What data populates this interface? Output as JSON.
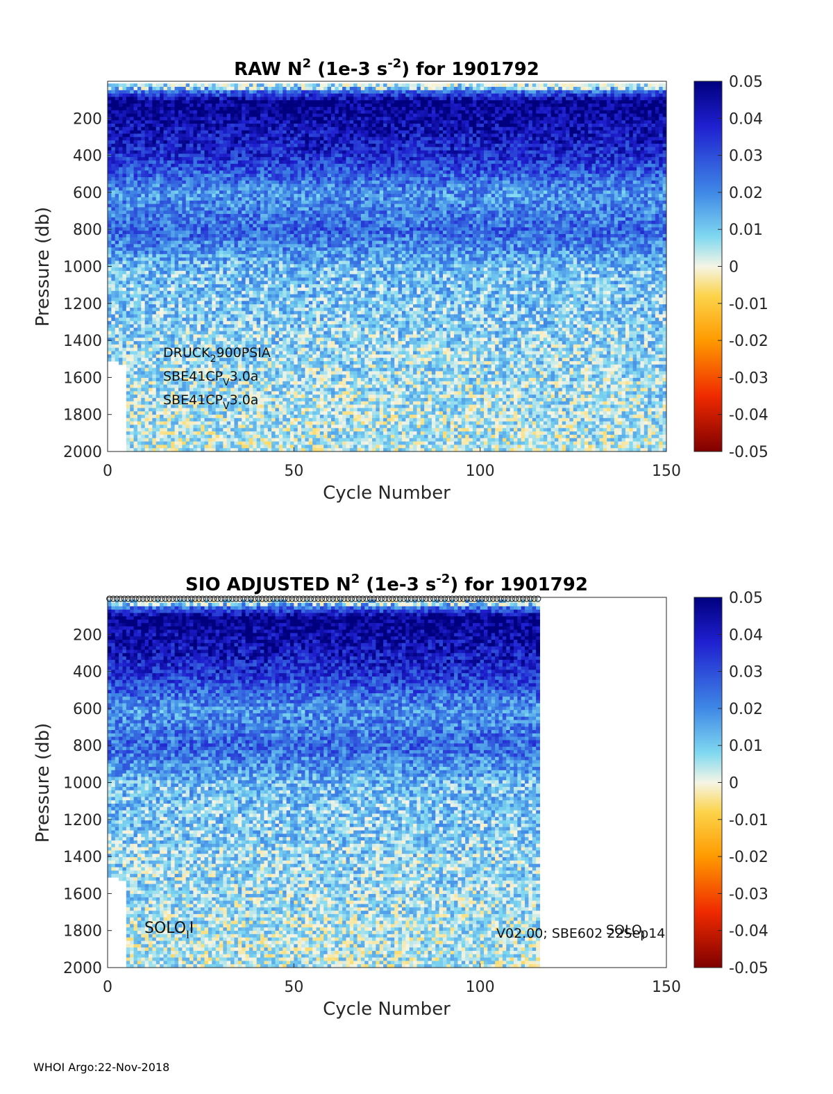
{
  "footer": "WHOI Argo:22-Nov-2018",
  "chart_data": [
    {
      "type": "heatmap",
      "title_parts": [
        "RAW N",
        "2",
        " (1e-3 s",
        "-2",
        ") for 1901792"
      ],
      "xlabel": "Cycle Number",
      "ylabel": "Pressure (db)",
      "xlim": [
        0,
        150
      ],
      "ylim": [
        2000,
        0
      ],
      "xticks": [
        0,
        50,
        100,
        150
      ],
      "yticks": [
        200,
        400,
        600,
        800,
        1000,
        1200,
        1400,
        1600,
        1800,
        2000
      ],
      "x_data_max": 150,
      "colorbar": {
        "range": [
          -0.05,
          0.05
        ],
        "ticks": [
          "0.05",
          "0.04",
          "0.03",
          "0.02",
          "0.01",
          "0",
          "-0.01",
          "-0.02",
          "-0.03",
          "-0.04",
          "-0.05"
        ]
      },
      "annotations": [
        {
          "parts": [
            "DRUCK",
            "2",
            "900PSIA"
          ]
        },
        {
          "parts": [
            "SBE41CP",
            "V",
            "3.0a"
          ]
        },
        {
          "parts": [
            "SBE41CP",
            "V",
            "3.0a"
          ]
        }
      ],
      "profile_markers": false,
      "depth_structure": [
        {
          "pressure": 0,
          "n2": 0.002
        },
        {
          "pressure": 100,
          "n2": 0.05
        },
        {
          "pressure": 400,
          "n2": 0.035
        },
        {
          "pressure": 600,
          "n2": 0.018
        },
        {
          "pressure": 800,
          "n2": 0.026
        },
        {
          "pressure": 1000,
          "n2": 0.012
        },
        {
          "pressure": 1400,
          "n2": 0.008
        },
        {
          "pressure": 2000,
          "n2": 0.004
        }
      ]
    },
    {
      "type": "heatmap",
      "title_parts": [
        "SIO  ADJUSTED N",
        "2",
        " (1e-3 s",
        "-2",
        ") for 1901792"
      ],
      "xlabel": "Cycle Number",
      "ylabel": "Pressure (db)",
      "xlim": [
        0,
        150
      ],
      "ylim": [
        2000,
        0
      ],
      "xticks": [
        0,
        50,
        100,
        150
      ],
      "yticks": [
        200,
        400,
        600,
        800,
        1000,
        1200,
        1400,
        1600,
        1800,
        2000
      ],
      "x_data_max": 116,
      "colorbar": {
        "range": [
          -0.05,
          0.05
        ],
        "ticks": [
          "0.05",
          "0.04",
          "0.03",
          "0.02",
          "0.01",
          "0",
          "-0.01",
          "-0.02",
          "-0.03",
          "-0.04",
          "-0.05"
        ]
      },
      "annotations": [
        {
          "parts": [
            "SOLO",
            "I",
            "I"
          ]
        },
        {
          "parts": [
            "SOLO",
            "I",
            ""
          ]
        },
        {
          "parts": [
            "V02.00; SBE602 22Sep14",
            "",
            ""
          ]
        }
      ],
      "profile_markers": true,
      "depth_structure": [
        {
          "pressure": 0,
          "n2": 0.002
        },
        {
          "pressure": 100,
          "n2": 0.05
        },
        {
          "pressure": 400,
          "n2": 0.035
        },
        {
          "pressure": 600,
          "n2": 0.018
        },
        {
          "pressure": 800,
          "n2": 0.026
        },
        {
          "pressure": 1000,
          "n2": 0.012
        },
        {
          "pressure": 1400,
          "n2": 0.008
        },
        {
          "pressure": 2000,
          "n2": 0.004
        }
      ]
    }
  ]
}
